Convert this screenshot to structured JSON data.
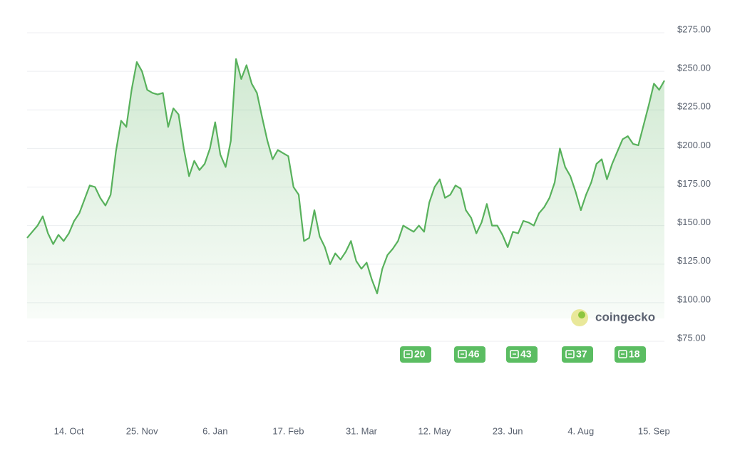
{
  "chart_data": {
    "type": "line",
    "categories": [
      null,
      null,
      null,
      null,
      null,
      null,
      null,
      null,
      "14. Oct",
      null,
      null,
      null,
      null,
      null,
      null,
      null,
      null,
      null,
      null,
      null,
      null,
      null,
      "25. Nov",
      null,
      null,
      null,
      null,
      null,
      null,
      null,
      null,
      null,
      null,
      null,
      null,
      null,
      "6. Jan",
      null,
      null,
      null,
      null,
      null,
      null,
      null,
      null,
      null,
      null,
      null,
      null,
      null,
      "17. Feb",
      null,
      null,
      null,
      null,
      null,
      null,
      null,
      null,
      null,
      null,
      null,
      null,
      null,
      "31. Mar",
      null,
      null,
      null,
      null,
      null,
      null,
      null,
      null,
      null,
      null,
      null,
      null,
      null,
      "12. May",
      null,
      null,
      null,
      null,
      null,
      null,
      null,
      null,
      null,
      null,
      null,
      null,
      null,
      "23. Jun",
      null,
      null,
      null,
      null,
      null,
      null,
      null,
      null,
      null,
      null,
      null,
      null,
      null,
      "4. Aug",
      null,
      null,
      null,
      null,
      null,
      null,
      null,
      null,
      null,
      null,
      null,
      null,
      null,
      "15. Sep",
      null,
      null
    ],
    "series": [
      {
        "color": "#58b15c",
        "values": [
          142,
          146,
          150,
          156,
          145,
          138,
          144,
          140,
          145,
          153,
          158,
          167,
          176,
          175,
          168,
          163,
          170,
          198,
          218,
          214,
          238,
          256,
          250,
          238,
          236,
          235,
          236,
          214,
          226,
          222,
          200,
          182,
          192,
          186,
          190,
          200,
          217,
          196,
          188,
          205,
          258,
          245,
          254,
          242,
          236,
          220,
          205,
          193,
          199,
          197,
          195,
          175,
          170,
          140,
          142,
          160,
          143,
          136,
          125,
          132,
          128,
          133,
          140,
          127,
          122,
          126,
          115,
          106,
          122,
          131,
          135,
          140,
          150,
          148,
          146,
          150,
          146,
          165,
          175,
          180,
          168,
          170,
          176,
          174,
          160,
          155,
          145,
          152,
          164,
          150,
          150,
          144,
          136,
          146,
          145,
          153,
          152,
          150,
          158,
          162,
          168,
          178,
          200,
          188,
          182,
          172,
          160,
          170,
          178,
          190,
          193,
          180,
          190,
          198,
          206,
          208,
          203,
          202,
          215,
          228,
          242,
          238,
          244
        ]
      }
    ],
    "ylim": [
      75,
      275
    ],
    "yticks": [
      {
        "value": 75,
        "label": "$75.00"
      },
      {
        "value": 100,
        "label": "$100.00"
      },
      {
        "value": 125,
        "label": "$125.00"
      },
      {
        "value": 150,
        "label": "$150.00"
      },
      {
        "value": 175,
        "label": "$175.00"
      },
      {
        "value": 200,
        "label": "$200.00"
      },
      {
        "value": 225,
        "label": "$225.00"
      },
      {
        "value": 250,
        "label": "$250.00"
      },
      {
        "value": 275,
        "label": "$275.00"
      }
    ],
    "grid": true,
    "news": [
      20,
      46,
      43,
      37,
      18
    ],
    "watermark": "coingecko"
  }
}
